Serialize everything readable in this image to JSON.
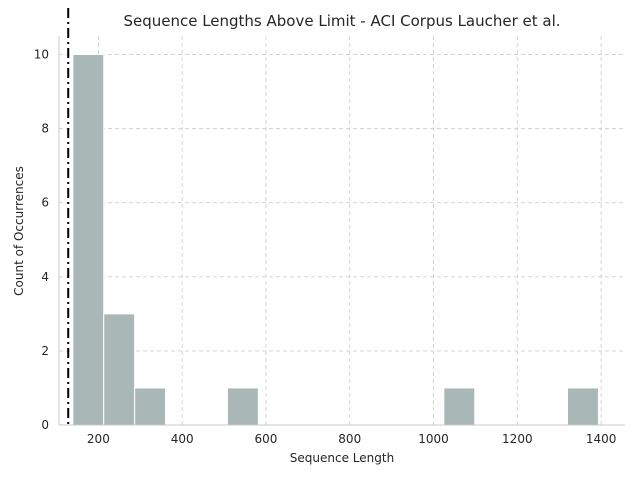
{
  "chart_data": {
    "type": "bar",
    "title": "Sequence Lengths Above Limit - ACI Corpus Laucher et al.",
    "xlabel": "Sequence Length",
    "ylabel": "Count of Occurrences",
    "xlim": [
      106,
      1457
    ],
    "ylim": [
      0,
      10.5
    ],
    "xticks": [
      200,
      400,
      600,
      800,
      1000,
      1200,
      1400
    ],
    "yticks": [
      0,
      2,
      4,
      6,
      8,
      10
    ],
    "grid": true,
    "bin_edges": [
      139,
      212.8,
      286.6,
      360.4,
      434.2,
      508,
      581.8,
      655.6,
      729.4,
      803.2,
      877,
      950.8,
      1024.6,
      1098.4,
      1172.2,
      1246,
      1319.8,
      1393.6
    ],
    "counts": [
      10,
      3,
      1,
      0,
      0,
      1,
      0,
      0,
      0,
      0,
      0,
      0,
      1,
      0,
      0,
      0,
      1
    ],
    "reference_line_x": 128,
    "colors": {
      "bar": "#a9b7b6",
      "reference_line": "#000000"
    }
  }
}
